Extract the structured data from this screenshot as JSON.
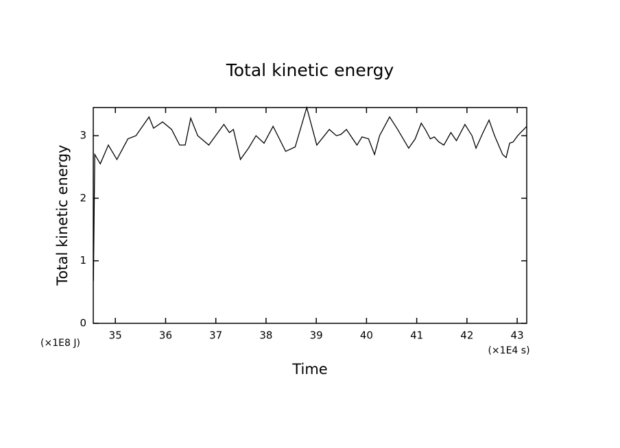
{
  "chart_data": {
    "type": "line",
    "title": "Total kinetic energy",
    "x_label": "Time",
    "y_label": "Total kinetic energy",
    "x_unit": "(×1E4 s)",
    "y_unit": "(×1E8 J)",
    "xlim": [
      34.56,
      43.19
    ],
    "ylim": [
      0,
      3.45
    ],
    "xticks": [
      35,
      36,
      37,
      38,
      39,
      40,
      41,
      42,
      43
    ],
    "yticks": [
      0,
      1,
      2,
      3
    ],
    "series": [
      {
        "color": "#000000",
        "x": [
          34.563,
          34.59,
          34.7,
          34.86,
          35.03,
          35.25,
          35.41,
          35.67,
          35.76,
          35.94,
          36.12,
          36.28,
          36.39,
          36.5,
          36.64,
          36.86,
          37.16,
          37.27,
          37.35,
          37.49,
          37.65,
          37.8,
          37.96,
          38.14,
          38.39,
          38.58,
          38.81,
          39.01,
          39.26,
          39.4,
          39.49,
          39.6,
          39.81,
          39.91,
          40.04,
          40.16,
          40.26,
          40.46,
          40.62,
          40.84,
          40.97,
          41.09,
          41.17,
          41.27,
          41.35,
          41.44,
          41.54,
          41.68,
          41.79,
          41.96,
          42.1,
          42.18,
          42.32,
          42.44,
          42.55,
          42.71,
          42.78,
          42.85,
          42.92,
          43.01,
          43.19
        ],
        "values": [
          0.68,
          2.7,
          2.55,
          2.85,
          2.62,
          2.95,
          3.0,
          3.3,
          3.12,
          3.22,
          3.1,
          2.85,
          2.85,
          3.28,
          3.0,
          2.85,
          3.18,
          3.05,
          3.1,
          2.62,
          2.8,
          3.0,
          2.88,
          3.15,
          2.75,
          2.82,
          3.45,
          2.85,
          3.1,
          3.0,
          3.02,
          3.1,
          2.85,
          2.98,
          2.95,
          2.7,
          3.0,
          3.3,
          3.1,
          2.8,
          2.95,
          3.2,
          3.1,
          2.95,
          2.98,
          2.9,
          2.85,
          3.05,
          2.92,
          3.18,
          3.0,
          2.8,
          3.05,
          3.25,
          3.0,
          2.7,
          2.65,
          2.88,
          2.9,
          3.0,
          3.15
        ]
      }
    ]
  }
}
